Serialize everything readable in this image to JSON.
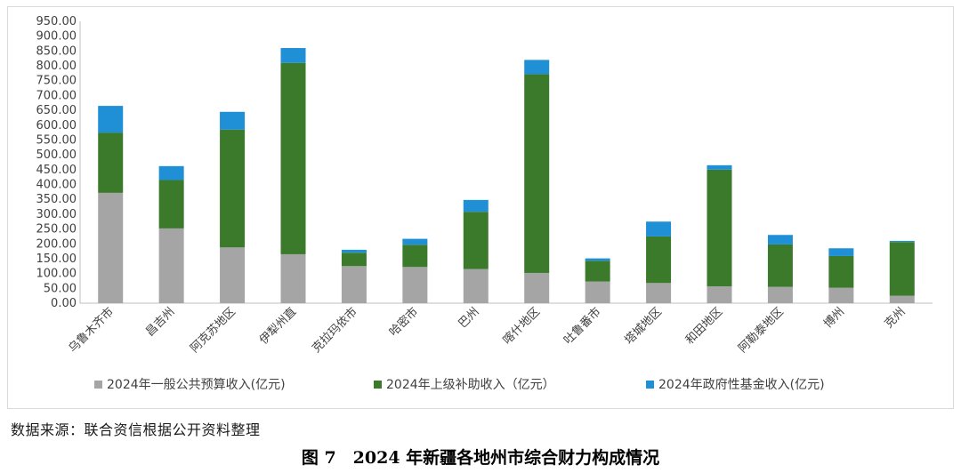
{
  "chart_data": {
    "type": "bar",
    "stacked": true,
    "categories": [
      "乌鲁木齐市",
      "昌吉州",
      "阿克苏地区",
      "伊犁州直",
      "克拉玛依市",
      "哈密市",
      "巴州",
      "喀什地区",
      "吐鲁番市",
      "塔城地区",
      "和田地区",
      "阿勒泰地区",
      "博州",
      "克州"
    ],
    "series": [
      {
        "name": "2024年一般公共预算收入(亿元)",
        "color": "#a5a5a5",
        "values": [
          372,
          252,
          188,
          165,
          125,
          122,
          115,
          102,
          73,
          68,
          57,
          55,
          52,
          25
        ]
      },
      {
        "name": "2024年上级补助收入（亿元）",
        "color": "#3a7a2a",
        "values": [
          203,
          163,
          397,
          645,
          45,
          75,
          193,
          670,
          70,
          157,
          393,
          143,
          107,
          181
        ]
      },
      {
        "name": "2024年政府性基金收入(亿元)",
        "color": "#1f8fd6",
        "values": [
          90,
          47,
          60,
          50,
          10,
          20,
          40,
          48,
          8,
          50,
          15,
          32,
          26,
          4
        ]
      }
    ],
    "ylim": [
      0,
      950
    ],
    "yticks": [
      "0.00",
      "50.00",
      "100.00",
      "150.00",
      "200.00",
      "250.00",
      "300.00",
      "350.00",
      "400.00",
      "450.00",
      "500.00",
      "550.00",
      "600.00",
      "650.00",
      "700.00",
      "750.00",
      "800.00",
      "850.00",
      "900.00",
      "950.00"
    ],
    "grid": false,
    "legend_position": "bottom"
  },
  "source_text": "数据来源：联合资信根据公开资料整理",
  "caption": "图 7　2024 年新疆各地州市综合财力构成情况"
}
